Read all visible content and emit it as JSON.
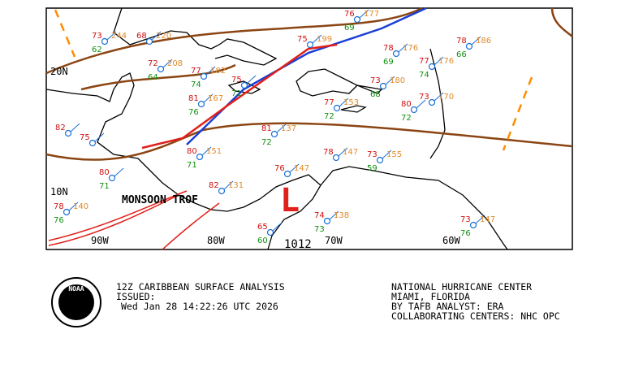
{
  "map": {
    "lat_labels": [
      "20N",
      "10N"
    ],
    "lon_labels": [
      "90W",
      "80W",
      "70W",
      "60W"
    ],
    "feature_labels": [
      "MONSOON TROF",
      "1012",
      "L"
    ],
    "stations": [
      {
        "temp": 73,
        "pressure": 244,
        "dew": 62
      },
      {
        "temp": 68,
        "pressure": 220
      },
      {
        "temp": 72,
        "pressure": 208,
        "dew": 64
      },
      {
        "temp": 77,
        "pressure": 182,
        "dew": 74
      },
      {
        "temp": 81,
        "pressure": 167,
        "dew": 76
      },
      {
        "temp": 75,
        "dew": 71
      },
      {
        "temp": 75,
        "pressure": 199
      },
      {
        "temp": 76,
        "pressure": 177,
        "dew": 69
      },
      {
        "temp": 78,
        "pressure": 176,
        "dew": 69
      },
      {
        "temp": 77,
        "pressure": 176,
        "dew": 74
      },
      {
        "temp": 78,
        "pressure": 186,
        "dew": 66
      },
      {
        "temp": 73,
        "pressure": 180,
        "dew": 68
      },
      {
        "temp": 77,
        "pressure": 153,
        "dew": 72
      },
      {
        "temp": 80,
        "dew": 72
      },
      {
        "temp": 73,
        "pressure": 170
      },
      {
        "temp": 81,
        "pressure": 137,
        "dew": 72
      },
      {
        "temp": 80,
        "pressure": 151,
        "dew": 71
      },
      {
        "temp": 78,
        "pressure": 147
      },
      {
        "temp": 73,
        "pressure": 155,
        "dew": 59
      },
      {
        "temp": 76,
        "pressure": 147
      },
      {
        "temp": 82,
        "pressure": 131
      },
      {
        "temp": 80,
        "dew": 71
      },
      {
        "temp": 78,
        "pressure": 140,
        "dew": 76
      },
      {
        "temp": 74,
        "pressure": 138,
        "dew": 73
      },
      {
        "temp": 65,
        "dew": 60
      },
      {
        "temp": 73,
        "pressure": 147,
        "dew": 76
      },
      {
        "temp": 82
      },
      {
        "temp": 75
      }
    ]
  },
  "footer": {
    "logo": "NOAA",
    "left": [
      "12Z CARIBBEAN SURFACE ANALYSIS",
      "ISSUED:",
      "Wed Jan 28 14:22:26 UTC 2026"
    ],
    "right": [
      "NATIONAL HURRICANE CENTER",
      "MIAMI, FLORIDA",
      "BY TAFB ANALYST: ERA",
      "COLLABORATING CENTERS: NHC OPC"
    ]
  }
}
